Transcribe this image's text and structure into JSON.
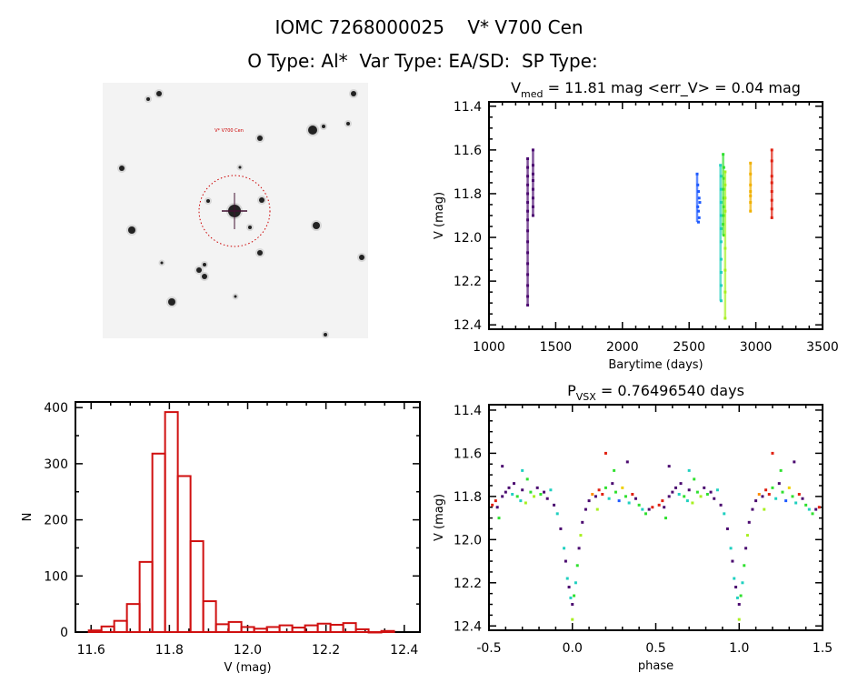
{
  "header": {
    "title": "IOMC 7268000025    V* V700 Cen",
    "subtitle": "O Type: Al*  Var Type: EA/SD:  SP Type:"
  },
  "image_panel": {
    "target_label": "V* V700 Cen",
    "circle_color": "#cc0000"
  },
  "chart_data": [
    {
      "type": "scatter",
      "title_main": "V",
      "title_sub": "med",
      "title_rest": " = 11.81 mag <err_V> = 0.04 mag",
      "xlabel": "Barytime (days)",
      "ylabel": "V (mag)",
      "xlim": [
        1000,
        3500
      ],
      "ylim": [
        12.42,
        11.38
      ],
      "y_inverted": true,
      "xticks": [
        "1000",
        "1500",
        "2000",
        "2500",
        "3000",
        "3500"
      ],
      "yticks": [
        "11.4",
        "11.6",
        "11.8",
        "12.0",
        "12.2",
        "12.4"
      ],
      "series": [
        {
          "color": "#4b0a70",
          "x": [
            1290,
            1290,
            1290,
            1290,
            1290,
            1290,
            1290,
            1290,
            1290,
            1290,
            1290,
            1290,
            1290,
            1290,
            1290,
            1290
          ],
          "y": [
            11.64,
            11.68,
            11.72,
            11.76,
            11.8,
            11.84,
            11.88,
            11.92,
            11.97,
            12.02,
            12.07,
            12.12,
            12.17,
            12.22,
            12.27,
            12.31
          ]
        },
        {
          "color": "#4b0a70",
          "x": [
            1330,
            1330,
            1330,
            1330,
            1330,
            1330,
            1330,
            1330
          ],
          "y": [
            11.6,
            11.67,
            11.71,
            11.74,
            11.78,
            11.82,
            11.86,
            11.9
          ]
        },
        {
          "color": "#1e5aff",
          "x": [
            2560,
            2565,
            2570,
            2575,
            2580,
            2565,
            2570,
            2575,
            2570
          ],
          "y": [
            11.71,
            11.76,
            11.79,
            11.82,
            11.84,
            11.86,
            11.88,
            11.91,
            11.93
          ]
        },
        {
          "color": "#20d0c0",
          "x": [
            2735,
            2740,
            2740,
            2740,
            2740,
            2740,
            2740,
            2740,
            2740,
            2740,
            2740
          ],
          "y": [
            11.67,
            11.72,
            11.78,
            11.84,
            11.9,
            11.96,
            12.02,
            12.1,
            12.16,
            12.22,
            12.29
          ]
        },
        {
          "color": "#30e030",
          "x": [
            2755,
            2760,
            2760,
            2760,
            2760,
            2760,
            2760,
            2755,
            2760
          ],
          "y": [
            11.62,
            11.68,
            11.73,
            11.78,
            11.82,
            11.86,
            11.9,
            11.94,
            11.99
          ]
        },
        {
          "color": "#a8f020",
          "x": [
            2770,
            2770,
            2770,
            2770,
            2770,
            2770,
            2770,
            2770
          ],
          "y": [
            11.7,
            11.76,
            11.82,
            11.88,
            12.05,
            12.15,
            12.25,
            12.37
          ]
        },
        {
          "color": "#f0b000",
          "x": [
            2960,
            2960,
            2960,
            2960,
            2960,
            2960,
            2960
          ],
          "y": [
            11.66,
            11.71,
            11.76,
            11.79,
            11.81,
            11.84,
            11.88
          ]
        },
        {
          "color": "#e02010",
          "x": [
            3120,
            3120,
            3120,
            3120,
            3120,
            3120,
            3120,
            3120
          ],
          "y": [
            11.6,
            11.65,
            11.72,
            11.75,
            11.79,
            11.83,
            11.87,
            11.91
          ]
        }
      ]
    },
    {
      "type": "bar",
      "xlabel": "V (mag)",
      "ylabel": "N",
      "xlim": [
        11.56,
        12.44
      ],
      "ylim": [
        0,
        410
      ],
      "xticks": [
        "11.6",
        "11.8",
        "12.0",
        "12.2",
        "12.4"
      ],
      "yticks": [
        "0",
        "100",
        "200",
        "300",
        "400"
      ],
      "bin_start": 11.594,
      "bin_width": 0.0325,
      "values": [
        3,
        10,
        20,
        50,
        125,
        318,
        392,
        278,
        162,
        55,
        14,
        18,
        9,
        6,
        9,
        12,
        8,
        12,
        15,
        13,
        16,
        5,
        0,
        2
      ],
      "color": "#d01010"
    },
    {
      "type": "scatter",
      "title_main": "P",
      "title_sub": "VSX",
      "title_rest": " = 0.76496540 days",
      "xlabel": "phase",
      "ylabel": "V (mag)",
      "xlim": [
        -0.5,
        1.5
      ],
      "ylim": [
        12.42,
        11.375
      ],
      "y_inverted": true,
      "xticks": [
        "-0.5",
        "0.0",
        "0.5",
        "1.0",
        "1.5"
      ],
      "yticks": [
        "11.4",
        "11.6",
        "11.8",
        "12.0",
        "12.2",
        "12.4"
      ],
      "colors": [
        "#4b0a70",
        "#1e5aff",
        "#20d0c0",
        "#30e030",
        "#a8f020",
        "#f0d000",
        "#ff8c00",
        "#e02010"
      ],
      "points": [
        [
          -0.48,
          11.84,
          7
        ],
        [
          -0.46,
          11.82,
          7
        ],
        [
          -0.45,
          11.85,
          0
        ],
        [
          -0.44,
          11.9,
          3
        ],
        [
          -0.42,
          11.8,
          0
        ],
        [
          -0.42,
          11.66,
          0
        ],
        [
          -0.4,
          11.78,
          0
        ],
        [
          -0.38,
          11.76,
          0
        ],
        [
          -0.36,
          11.79,
          2
        ],
        [
          -0.35,
          11.74,
          0
        ],
        [
          -0.33,
          11.8,
          3
        ],
        [
          -0.31,
          11.82,
          2
        ],
        [
          -0.3,
          11.77,
          0
        ],
        [
          -0.3,
          11.68,
          2
        ],
        [
          -0.28,
          11.83,
          4
        ],
        [
          -0.27,
          11.72,
          3
        ],
        [
          -0.25,
          11.78,
          3
        ],
        [
          -0.23,
          11.8,
          4
        ],
        [
          -0.21,
          11.76,
          0
        ],
        [
          -0.19,
          11.79,
          3
        ],
        [
          -0.17,
          11.78,
          0
        ],
        [
          -0.15,
          11.81,
          0
        ],
        [
          -0.13,
          11.77,
          2
        ],
        [
          -0.11,
          11.84,
          0
        ],
        [
          -0.09,
          11.88,
          2
        ],
        [
          -0.07,
          11.95,
          0
        ],
        [
          -0.05,
          12.04,
          2
        ],
        [
          -0.04,
          12.1,
          0
        ],
        [
          -0.03,
          12.18,
          2
        ],
        [
          -0.02,
          12.22,
          0
        ],
        [
          -0.01,
          12.27,
          2
        ],
        [
          0.0,
          12.3,
          0
        ],
        [
          0.0,
          12.37,
          4
        ],
        [
          0.01,
          12.26,
          3
        ],
        [
          0.02,
          12.2,
          2
        ],
        [
          0.03,
          12.12,
          3
        ],
        [
          0.04,
          12.04,
          0
        ],
        [
          0.05,
          11.98,
          4
        ],
        [
          0.06,
          11.92,
          0
        ],
        [
          0.08,
          11.86,
          0
        ],
        [
          0.1,
          11.82,
          0
        ],
        [
          0.12,
          11.79,
          6
        ],
        [
          0.14,
          11.8,
          0
        ],
        [
          0.15,
          11.86,
          4
        ],
        [
          0.16,
          11.77,
          7
        ],
        [
          0.18,
          11.79,
          7
        ],
        [
          0.2,
          11.6,
          7
        ],
        [
          0.2,
          11.76,
          3
        ],
        [
          0.22,
          11.81,
          2
        ],
        [
          0.24,
          11.74,
          0
        ],
        [
          0.25,
          11.68,
          3
        ],
        [
          0.26,
          11.78,
          3
        ],
        [
          0.28,
          11.82,
          1
        ],
        [
          0.3,
          11.76,
          5
        ],
        [
          0.32,
          11.8,
          3
        ],
        [
          0.33,
          11.64,
          0
        ],
        [
          0.34,
          11.83,
          2
        ],
        [
          0.36,
          11.79,
          7
        ],
        [
          0.38,
          11.81,
          0
        ],
        [
          0.4,
          11.84,
          3
        ],
        [
          0.42,
          11.86,
          2
        ],
        [
          0.44,
          11.88,
          3
        ],
        [
          0.46,
          11.86,
          0
        ],
        [
          0.48,
          11.85,
          7
        ]
      ]
    }
  ]
}
